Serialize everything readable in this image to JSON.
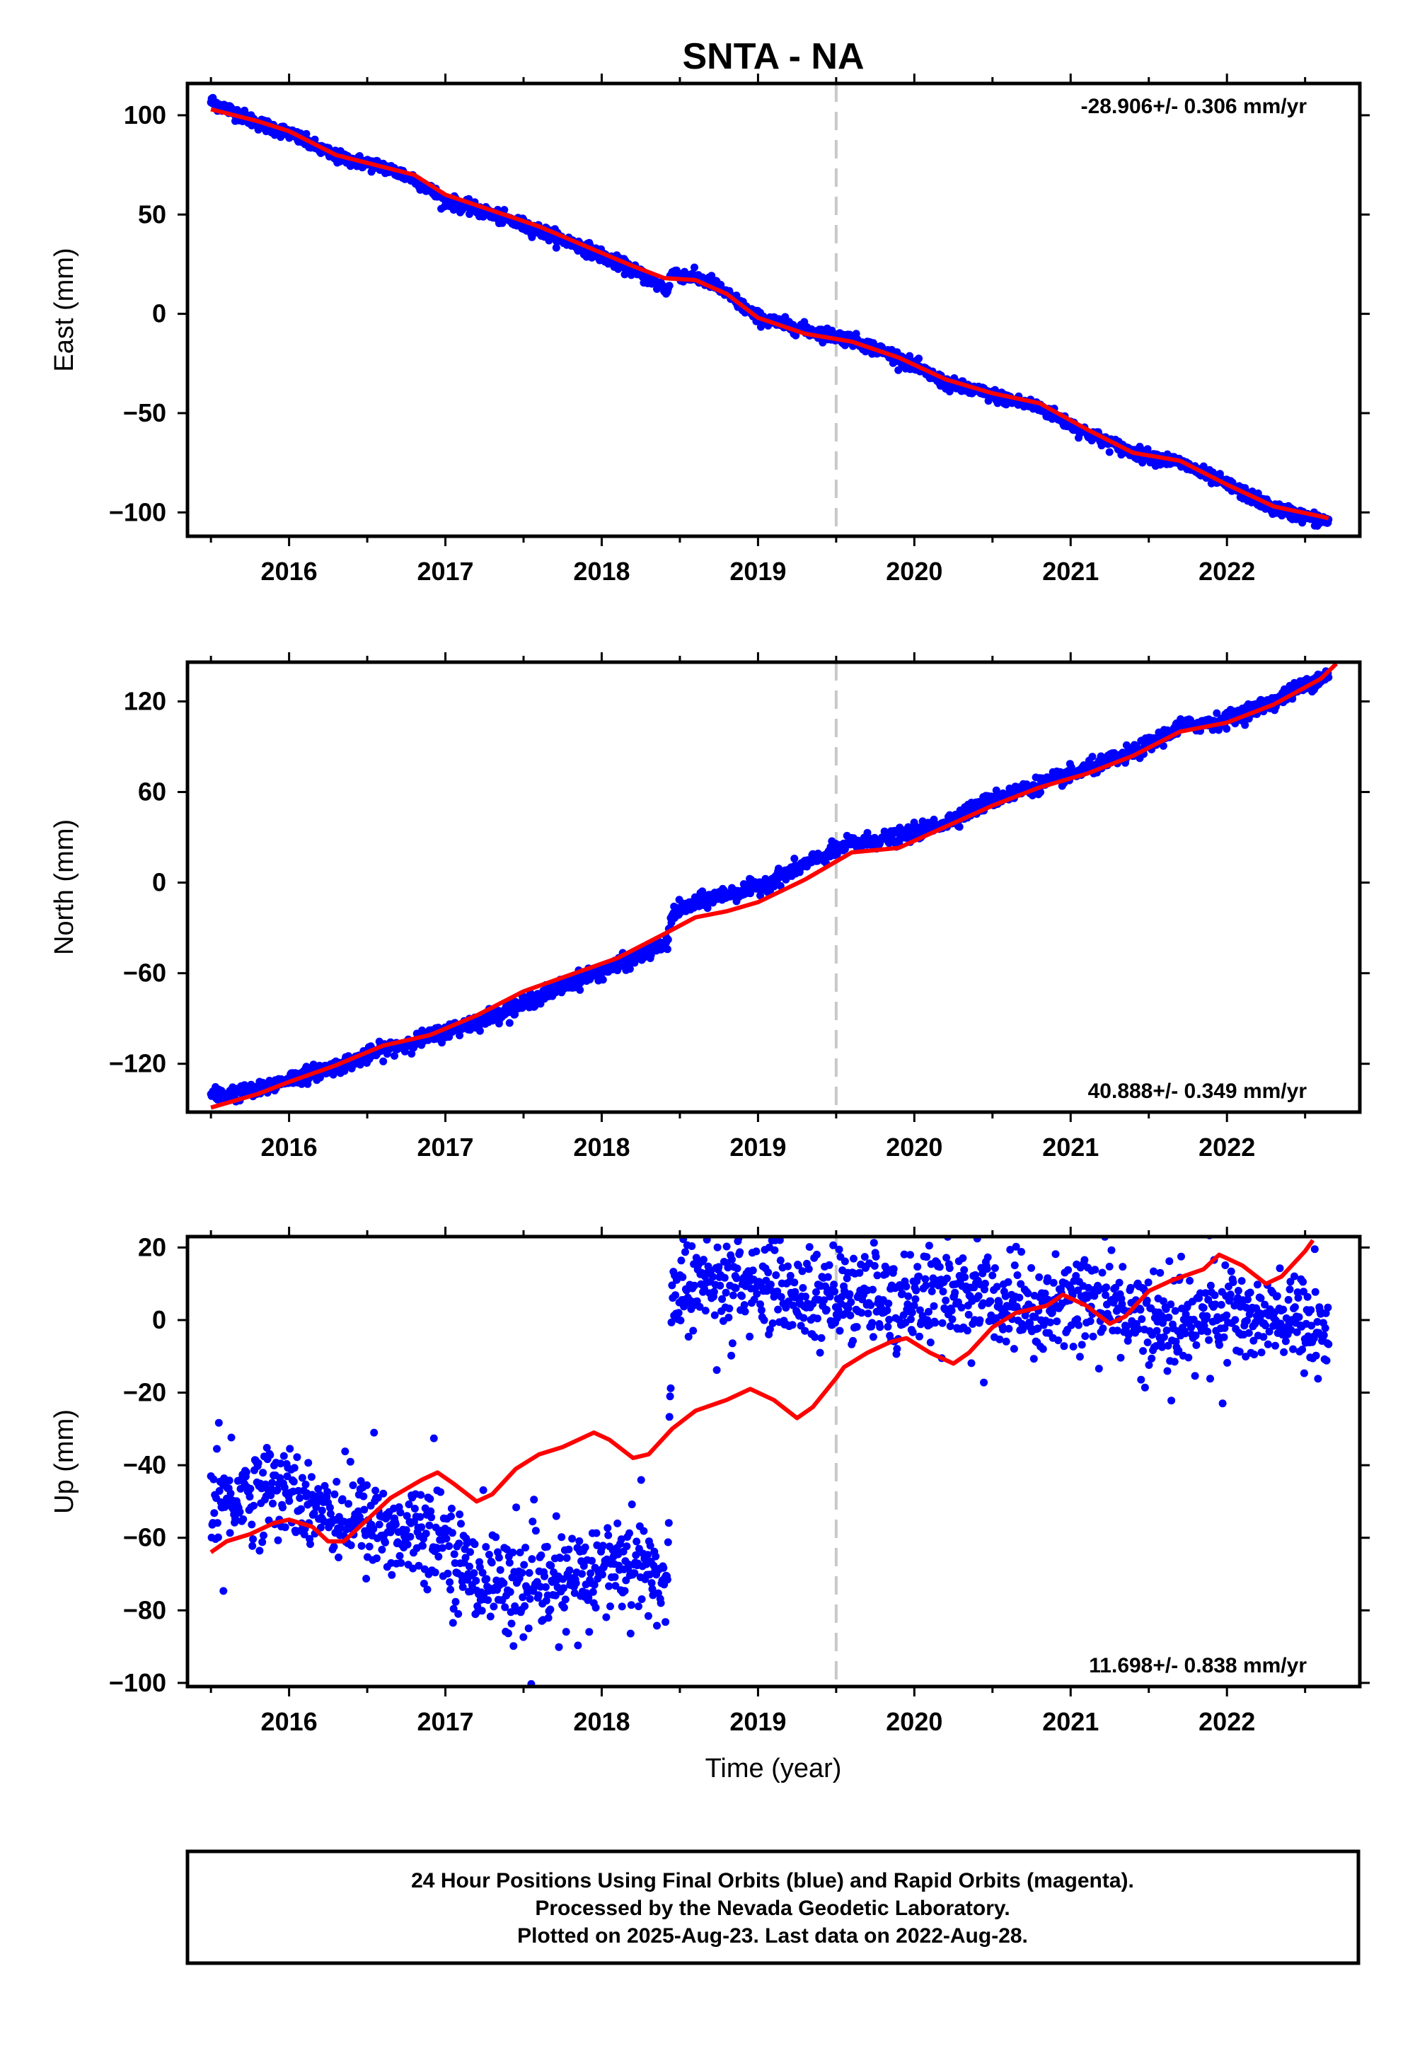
{
  "title": "SNTA - NA",
  "colors": {
    "points": "#0000ff",
    "model": "#ff0000",
    "marker": "#c8c8c8",
    "frame": "#000000"
  },
  "chart_data": [
    {
      "type": "scatter",
      "ylabel": "East (mm)",
      "xlabel": "",
      "xlim": [
        2015.35,
        2022.85
      ],
      "ylim": [
        -112,
        116
      ],
      "xticks": [
        2016,
        2017,
        2018,
        2019,
        2020,
        2021,
        2022
      ],
      "yticks": [
        100,
        50,
        0,
        -50,
        -100
      ],
      "ytick_labels": [
        "100",
        "50",
        "0",
        "−50",
        "−100"
      ],
      "rate": "-28.906+/- 0.306 mm/yr",
      "rate_position": "top-right",
      "grid": false,
      "marker_line_x": 2019.5,
      "points_trend": [
        [
          2015.5,
          107
        ],
        [
          2015.8,
          96
        ],
        [
          2016.0,
          91
        ],
        [
          2016.3,
          79
        ],
        [
          2016.6,
          74
        ],
        [
          2016.8,
          68
        ],
        [
          2017.0,
          57
        ],
        [
          2017.3,
          50
        ],
        [
          2017.6,
          42
        ],
        [
          2017.9,
          33
        ],
        [
          2018.2,
          22
        ],
        [
          2018.42,
          12
        ],
        [
          2018.45,
          21
        ],
        [
          2018.7,
          16
        ],
        [
          2019.0,
          -2
        ],
        [
          2019.3,
          -8
        ],
        [
          2019.6,
          -13
        ],
        [
          2019.9,
          -22
        ],
        [
          2020.2,
          -35
        ],
        [
          2020.5,
          -41
        ],
        [
          2020.8,
          -47
        ],
        [
          2021.1,
          -60
        ],
        [
          2021.4,
          -70
        ],
        [
          2021.7,
          -75
        ],
        [
          2022.0,
          -86
        ],
        [
          2022.3,
          -98
        ],
        [
          2022.6,
          -104
        ],
        [
          2022.65,
          -104
        ]
      ],
      "points_scatter": 1.6,
      "model_curve": [
        [
          2015.5,
          103
        ],
        [
          2015.8,
          97
        ],
        [
          2016.0,
          92
        ],
        [
          2016.3,
          80
        ],
        [
          2016.6,
          74
        ],
        [
          2016.8,
          70
        ],
        [
          2017.0,
          60
        ],
        [
          2017.3,
          52
        ],
        [
          2017.6,
          44
        ],
        [
          2017.9,
          34
        ],
        [
          2018.2,
          24
        ],
        [
          2018.4,
          18
        ],
        [
          2018.6,
          17
        ],
        [
          2018.8,
          10
        ],
        [
          2019.0,
          -2
        ],
        [
          2019.3,
          -10
        ],
        [
          2019.6,
          -14
        ],
        [
          2019.9,
          -22
        ],
        [
          2020.2,
          -33
        ],
        [
          2020.5,
          -40
        ],
        [
          2020.8,
          -45
        ],
        [
          2021.1,
          -58
        ],
        [
          2021.4,
          -70
        ],
        [
          2021.7,
          -74
        ],
        [
          2022.0,
          -86
        ],
        [
          2022.3,
          -97
        ],
        [
          2022.6,
          -102
        ],
        [
          2022.65,
          -103
        ]
      ]
    },
    {
      "type": "scatter",
      "ylabel": "North (mm)",
      "xlabel": "",
      "xlim": [
        2015.35,
        2022.85
      ],
      "ylim": [
        -152,
        146
      ],
      "xticks": [
        2016,
        2017,
        2018,
        2019,
        2020,
        2021,
        2022
      ],
      "yticks": [
        120,
        60,
        0,
        -60,
        -120
      ],
      "ytick_labels": [
        "120",
        "60",
        "0",
        "−60",
        "−120"
      ],
      "rate": "40.888+/- 0.349 mm/yr",
      "rate_position": "bottom-right",
      "grid": false,
      "marker_line_x": 2019.5,
      "points_trend": [
        [
          2015.5,
          -141
        ],
        [
          2015.8,
          -138
        ],
        [
          2016.0,
          -130
        ],
        [
          2016.3,
          -122
        ],
        [
          2016.6,
          -111
        ],
        [
          2016.9,
          -102
        ],
        [
          2017.2,
          -92
        ],
        [
          2017.5,
          -80
        ],
        [
          2017.8,
          -66
        ],
        [
          2018.1,
          -55
        ],
        [
          2018.42,
          -40
        ],
        [
          2018.45,
          -20
        ],
        [
          2018.7,
          -10
        ],
        [
          2019.0,
          -3
        ],
        [
          2019.3,
          12
        ],
        [
          2019.6,
          26
        ],
        [
          2019.9,
          30
        ],
        [
          2020.2,
          40
        ],
        [
          2020.5,
          55
        ],
        [
          2020.8,
          65
        ],
        [
          2021.1,
          75
        ],
        [
          2021.4,
          86
        ],
        [
          2021.7,
          103
        ],
        [
          2022.0,
          108
        ],
        [
          2022.3,
          120
        ],
        [
          2022.6,
          136
        ],
        [
          2022.65,
          138
        ]
      ],
      "points_scatter": 2.5,
      "model_curve": [
        [
          2015.5,
          -149
        ],
        [
          2015.8,
          -140
        ],
        [
          2016.0,
          -132
        ],
        [
          2016.3,
          -121
        ],
        [
          2016.6,
          -108
        ],
        [
          2016.9,
          -101
        ],
        [
          2017.2,
          -88
        ],
        [
          2017.5,
          -72
        ],
        [
          2017.8,
          -61
        ],
        [
          2018.1,
          -50
        ],
        [
          2018.4,
          -34
        ],
        [
          2018.6,
          -23
        ],
        [
          2018.8,
          -19
        ],
        [
          2019.0,
          -13
        ],
        [
          2019.3,
          2
        ],
        [
          2019.6,
          20
        ],
        [
          2019.9,
          23
        ],
        [
          2020.2,
          37
        ],
        [
          2020.5,
          51
        ],
        [
          2020.8,
          63
        ],
        [
          2021.1,
          72
        ],
        [
          2021.4,
          84
        ],
        [
          2021.7,
          100
        ],
        [
          2022.0,
          106
        ],
        [
          2022.3,
          118
        ],
        [
          2022.6,
          135
        ],
        [
          2022.7,
          145
        ]
      ]
    },
    {
      "type": "scatter",
      "ylabel": "Up (mm)",
      "xlabel": "Time (year)",
      "xlim": [
        2015.35,
        2022.85
      ],
      "ylim": [
        -101,
        23
      ],
      "xticks": [
        2016,
        2017,
        2018,
        2019,
        2020,
        2021,
        2022
      ],
      "yticks": [
        20,
        0,
        -20,
        -40,
        -60,
        -80,
        -100
      ],
      "ytick_labels": [
        "20",
        "0",
        "−20",
        "−40",
        "−60",
        "−80",
        "−100"
      ],
      "rate": "11.698+/- 0.838 mm/yr",
      "rate_position": "bottom-right",
      "grid": false,
      "marker_line_x": 2019.5,
      "points_trend": [
        [
          2015.5,
          -50
        ],
        [
          2015.8,
          -47
        ],
        [
          2016.0,
          -47
        ],
        [
          2016.3,
          -53
        ],
        [
          2016.6,
          -58
        ],
        [
          2016.9,
          -57
        ],
        [
          2017.0,
          -60
        ],
        [
          2017.1,
          -68
        ],
        [
          2017.5,
          -75
        ],
        [
          2017.8,
          -72
        ],
        [
          2018.0,
          -68
        ],
        [
          2018.2,
          -67
        ],
        [
          2018.42,
          -73
        ],
        [
          2018.45,
          9
        ],
        [
          2018.8,
          10
        ],
        [
          2019.0,
          12
        ],
        [
          2019.3,
          6
        ],
        [
          2019.6,
          6
        ],
        [
          2019.9,
          6
        ],
        [
          2020.2,
          7
        ],
        [
          2020.5,
          5
        ],
        [
          2020.8,
          2
        ],
        [
          2021.0,
          7
        ],
        [
          2021.3,
          4
        ],
        [
          2021.6,
          -1
        ],
        [
          2021.9,
          2
        ],
        [
          2022.2,
          0
        ],
        [
          2022.5,
          -1
        ],
        [
          2022.65,
          -4
        ]
      ],
      "points_scatter": 6.5,
      "model_curve": [
        [
          2015.5,
          -64
        ],
        [
          2015.6,
          -61
        ],
        [
          2015.75,
          -59
        ],
        [
          2015.9,
          -56
        ],
        [
          2016.0,
          -55
        ],
        [
          2016.15,
          -57
        ],
        [
          2016.25,
          -61
        ],
        [
          2016.35,
          -61
        ],
        [
          2016.5,
          -55
        ],
        [
          2016.65,
          -49
        ],
        [
          2016.85,
          -44
        ],
        [
          2016.95,
          -42
        ],
        [
          2017.05,
          -45
        ],
        [
          2017.2,
          -50
        ],
        [
          2017.3,
          -48
        ],
        [
          2017.45,
          -41
        ],
        [
          2017.6,
          -37
        ],
        [
          2017.75,
          -35
        ],
        [
          2017.95,
          -31
        ],
        [
          2018.05,
          -33
        ],
        [
          2018.2,
          -38
        ],
        [
          2018.3,
          -37
        ],
        [
          2018.45,
          -30
        ],
        [
          2018.6,
          -25
        ],
        [
          2018.8,
          -22
        ],
        [
          2018.95,
          -19
        ],
        [
          2019.1,
          -22
        ],
        [
          2019.25,
          -27
        ],
        [
          2019.35,
          -24
        ],
        [
          2019.5,
          -16
        ],
        [
          2019.55,
          -13
        ],
        [
          2019.7,
          -9
        ],
        [
          2019.85,
          -6
        ],
        [
          2019.95,
          -5
        ],
        [
          2020.1,
          -9
        ],
        [
          2020.25,
          -12
        ],
        [
          2020.35,
          -9
        ],
        [
          2020.5,
          -2
        ],
        [
          2020.65,
          2
        ],
        [
          2020.85,
          4
        ],
        [
          2020.95,
          7
        ],
        [
          2021.1,
          4
        ],
        [
          2021.25,
          -1
        ],
        [
          2021.35,
          1
        ],
        [
          2021.5,
          8
        ],
        [
          2021.65,
          11
        ],
        [
          2021.85,
          14
        ],
        [
          2021.95,
          18
        ],
        [
          2022.1,
          15
        ],
        [
          2022.25,
          10
        ],
        [
          2022.35,
          12
        ],
        [
          2022.5,
          19
        ],
        [
          2022.55,
          22
        ]
      ]
    }
  ],
  "footer": {
    "line1": "24 Hour Positions Using Final Orbits (blue) and Rapid Orbits (magenta).",
    "line2": "Processed by the Nevada Geodetic Laboratory.",
    "line3": "Plotted on 2025-Aug-23. Last data on 2022-Aug-28."
  }
}
